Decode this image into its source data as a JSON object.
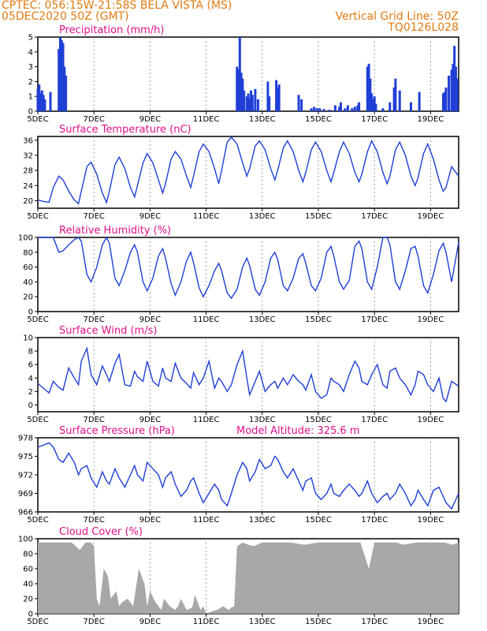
{
  "header": {
    "line1": "CPTEC:   056:15W-21:58S   BELA VISTA (MS)",
    "line2": "05DEC2020 50Z (GMT)",
    "grid_note": "Vertical Grid Line: 50Z",
    "code": "TQ0126L028"
  },
  "colors": {
    "title": "#e0108a",
    "header": "#e07a12",
    "series": "#1f3fd6",
    "cloud": "#a8a8a8"
  },
  "x_axis": {
    "days": [
      "5DEC",
      "7DEC",
      "9DEC",
      "11DEC",
      "13DEC",
      "15DEC",
      "17DEC",
      "19DEC"
    ],
    "day_values": [
      5,
      7,
      9,
      11,
      13,
      15,
      17,
      19
    ],
    "range": [
      5,
      20
    ]
  },
  "chart_data": [
    {
      "id": "precip",
      "type": "bar",
      "title": "Precipitation (mm/h)",
      "ylim": [
        0,
        5
      ],
      "yticks": [
        0,
        1,
        2,
        3,
        4,
        5
      ],
      "x": [
        5.0,
        5.05,
        5.1,
        5.15,
        5.2,
        5.25,
        5.45,
        5.75,
        5.8,
        5.85,
        5.9,
        5.95,
        6.0,
        12.1,
        12.15,
        12.2,
        12.25,
        12.3,
        12.35,
        12.45,
        12.5,
        12.55,
        12.6,
        12.65,
        12.75,
        12.85,
        13.2,
        13.25,
        13.5,
        13.55,
        13.6,
        14.3,
        14.4,
        14.75,
        14.85,
        14.95,
        15.05,
        15.2,
        15.4,
        15.6,
        15.75,
        15.8,
        15.95,
        16.05,
        16.2,
        16.3,
        16.4,
        16.45,
        16.75,
        16.8,
        16.85,
        16.9,
        16.95,
        17.0,
        17.05,
        17.3,
        17.55,
        17.7,
        17.75,
        17.9,
        18.3,
        18.6,
        19.45,
        19.5,
        19.55,
        19.65,
        19.75,
        19.8,
        19.85,
        19.9,
        19.95
      ],
      "values": [
        1.5,
        1.8,
        1.2,
        1.4,
        1.1,
        0.8,
        1.3,
        4.2,
        5.0,
        4.8,
        4.6,
        3.0,
        2.4,
        3.0,
        2.8,
        5.0,
        2.6,
        2.2,
        1.4,
        1.0,
        1.2,
        0.9,
        1.4,
        1.1,
        1.5,
        0.8,
        2.0,
        1.0,
        2.1,
        1.6,
        1.8,
        1.1,
        0.8,
        0.2,
        0.3,
        0.2,
        0.2,
        0.15,
        0.1,
        0.4,
        0.3,
        0.6,
        0.2,
        0.4,
        0.2,
        0.3,
        0.4,
        0.6,
        3.0,
        3.2,
        2.2,
        1.2,
        0.8,
        1.0,
        0.5,
        0.2,
        0.6,
        1.6,
        2.2,
        1.4,
        0.6,
        1.3,
        1.2,
        1.3,
        1.6,
        2.4,
        2.8,
        3.2,
        4.4,
        3.0,
        2.2
      ]
    },
    {
      "id": "temp",
      "type": "line",
      "title": "Surface Temperature (nC)",
      "ylim": [
        18,
        37
      ],
      "yticks": [
        20,
        24,
        28,
        32,
        36
      ],
      "x": [
        5.0,
        5.2,
        5.4,
        5.55,
        5.75,
        5.9,
        6.1,
        6.3,
        6.45,
        6.55,
        6.75,
        6.9,
        7.1,
        7.3,
        7.45,
        7.55,
        7.75,
        7.9,
        8.1,
        8.3,
        8.45,
        8.55,
        8.75,
        8.9,
        9.1,
        9.3,
        9.45,
        9.55,
        9.75,
        9.9,
        10.1,
        10.3,
        10.45,
        10.55,
        10.75,
        10.9,
        11.1,
        11.3,
        11.45,
        11.55,
        11.75,
        11.9,
        12.1,
        12.3,
        12.45,
        12.55,
        12.75,
        12.9,
        13.1,
        13.3,
        13.45,
        13.55,
        13.75,
        13.9,
        14.1,
        14.3,
        14.45,
        14.55,
        14.75,
        14.9,
        15.1,
        15.3,
        15.45,
        15.55,
        15.75,
        15.9,
        16.1,
        16.3,
        16.45,
        16.55,
        16.75,
        16.9,
        17.1,
        17.3,
        17.45,
        17.55,
        17.75,
        17.9,
        18.1,
        18.3,
        18.45,
        18.55,
        18.75,
        18.9,
        19.1,
        19.3,
        19.45,
        19.55,
        19.75,
        20.0
      ],
      "values": [
        20.2,
        19.8,
        19.6,
        23.5,
        26.5,
        25.5,
        22.5,
        20.2,
        19.2,
        22.5,
        29.0,
        30.2,
        27.0,
        22.0,
        19.5,
        22.5,
        29.5,
        31.5,
        28.5,
        23.5,
        21.0,
        24.0,
        30.0,
        32.5,
        30.0,
        25.5,
        22.0,
        24.5,
        31.0,
        33.0,
        31.0,
        26.5,
        23.5,
        26.5,
        33.0,
        35.0,
        33.0,
        28.5,
        24.5,
        28.0,
        35.5,
        36.8,
        35.0,
        30.0,
        26.5,
        28.5,
        34.5,
        35.8,
        33.5,
        28.5,
        25.5,
        28.0,
        34.0,
        35.8,
        33.0,
        28.0,
        25.0,
        27.5,
        33.5,
        35.5,
        33.0,
        28.0,
        25.0,
        27.5,
        33.0,
        35.5,
        32.5,
        27.5,
        25.0,
        27.0,
        33.0,
        35.8,
        33.0,
        27.5,
        24.5,
        26.5,
        33.5,
        35.5,
        32.0,
        26.5,
        24.0,
        26.0,
        32.5,
        35.0,
        31.0,
        25.5,
        22.5,
        23.5,
        29.0,
        26.5
      ]
    },
    {
      "id": "rh",
      "type": "line",
      "title": "Relative Humidity (%)",
      "ylim": [
        0,
        100
      ],
      "yticks": [
        0,
        20,
        40,
        60,
        80,
        100
      ],
      "x": [
        5.0,
        5.3,
        5.55,
        5.75,
        5.9,
        6.1,
        6.3,
        6.45,
        6.55,
        6.75,
        6.9,
        7.1,
        7.3,
        7.45,
        7.55,
        7.75,
        7.9,
        8.1,
        8.3,
        8.45,
        8.55,
        8.75,
        8.9,
        9.1,
        9.3,
        9.45,
        9.55,
        9.75,
        9.9,
        10.1,
        10.3,
        10.45,
        10.55,
        10.75,
        10.9,
        11.1,
        11.3,
        11.45,
        11.55,
        11.75,
        11.9,
        12.1,
        12.3,
        12.45,
        12.55,
        12.75,
        12.9,
        13.1,
        13.3,
        13.45,
        13.55,
        13.75,
        13.9,
        14.1,
        14.3,
        14.45,
        14.55,
        14.75,
        14.9,
        15.1,
        15.3,
        15.45,
        15.55,
        15.75,
        15.9,
        16.1,
        16.3,
        16.45,
        16.55,
        16.75,
        16.9,
        17.1,
        17.3,
        17.45,
        17.55,
        17.75,
        17.9,
        18.1,
        18.3,
        18.45,
        18.55,
        18.75,
        18.9,
        19.1,
        19.3,
        19.45,
        19.55,
        19.75,
        20.0
      ],
      "values": [
        100,
        100,
        100,
        80,
        82,
        90,
        97,
        100,
        95,
        50,
        40,
        60,
        90,
        100,
        92,
        45,
        35,
        55,
        80,
        90,
        80,
        40,
        28,
        45,
        75,
        85,
        72,
        38,
        22,
        40,
        68,
        80,
        66,
        32,
        20,
        35,
        55,
        65,
        55,
        25,
        18,
        30,
        60,
        72,
        62,
        30,
        22,
        40,
        72,
        80,
        70,
        35,
        28,
        45,
        72,
        78,
        65,
        35,
        28,
        45,
        80,
        88,
        75,
        40,
        30,
        42,
        88,
        95,
        85,
        40,
        30,
        60,
        100,
        100,
        90,
        40,
        30,
        55,
        85,
        88,
        75,
        35,
        25,
        50,
        82,
        92,
        80,
        40,
        93
      ]
    },
    {
      "id": "wind",
      "type": "line",
      "title": "Surface Wind (m/s)",
      "ylim": [
        -1,
        10
      ],
      "yticks": [
        0,
        2,
        4,
        6,
        8,
        10
      ],
      "x": [
        5.0,
        5.2,
        5.4,
        5.55,
        5.75,
        5.9,
        6.1,
        6.3,
        6.45,
        6.55,
        6.75,
        6.9,
        7.1,
        7.3,
        7.45,
        7.55,
        7.75,
        7.9,
        8.1,
        8.3,
        8.45,
        8.55,
        8.75,
        8.9,
        9.1,
        9.3,
        9.45,
        9.55,
        9.75,
        9.9,
        10.1,
        10.3,
        10.45,
        10.55,
        10.75,
        10.9,
        11.1,
        11.3,
        11.45,
        11.55,
        11.75,
        11.9,
        12.1,
        12.3,
        12.45,
        12.55,
        12.75,
        12.9,
        13.1,
        13.3,
        13.45,
        13.55,
        13.75,
        13.9,
        14.1,
        14.3,
        14.45,
        14.55,
        14.75,
        14.9,
        15.1,
        15.3,
        15.45,
        15.55,
        15.75,
        15.9,
        16.1,
        16.3,
        16.45,
        16.55,
        16.75,
        16.9,
        17.1,
        17.3,
        17.45,
        17.55,
        17.75,
        17.9,
        18.1,
        18.3,
        18.45,
        18.55,
        18.75,
        18.9,
        19.1,
        19.3,
        19.45,
        19.55,
        19.75,
        20.0
      ],
      "values": [
        3.2,
        2.5,
        1.8,
        3.5,
        2.6,
        2.2,
        5.5,
        4.0,
        3.0,
        6.5,
        8.4,
        4.5,
        3.0,
        5.8,
        4.5,
        3.5,
        6.2,
        7.5,
        3.0,
        2.8,
        5.0,
        4.2,
        3.5,
        6.5,
        3.5,
        2.8,
        5.5,
        4.0,
        3.5,
        6.2,
        4.0,
        3.2,
        2.5,
        4.8,
        3.0,
        4.0,
        6.5,
        2.5,
        4.0,
        3.5,
        2.0,
        3.0,
        6.0,
        8.0,
        4.0,
        1.5,
        3.5,
        5.0,
        2.0,
        3.0,
        3.5,
        2.5,
        4.0,
        3.0,
        4.5,
        3.5,
        3.0,
        2.2,
        4.5,
        2.0,
        1.0,
        1.5,
        4.0,
        3.5,
        3.0,
        2.0,
        4.5,
        6.5,
        5.5,
        3.5,
        3.0,
        4.5,
        6.0,
        3.0,
        2.5,
        5.0,
        5.5,
        4.0,
        3.0,
        1.5,
        3.0,
        5.0,
        4.5,
        3.0,
        2.0,
        4.0,
        1.0,
        0.5,
        3.5,
        2.8
      ]
    },
    {
      "id": "pressure",
      "type": "line",
      "title": "Surface Pressure (hPa)",
      "annotation": "Model Altitude: 325.6 m",
      "ylim": [
        966,
        978
      ],
      "yticks": [
        966,
        969,
        972,
        975,
        978
      ],
      "x": [
        5.0,
        5.2,
        5.4,
        5.55,
        5.75,
        5.9,
        6.1,
        6.3,
        6.45,
        6.55,
        6.75,
        6.9,
        7.1,
        7.3,
        7.45,
        7.55,
        7.75,
        7.9,
        8.1,
        8.3,
        8.45,
        8.55,
        8.75,
        8.9,
        9.1,
        9.3,
        9.45,
        9.55,
        9.75,
        9.9,
        10.1,
        10.3,
        10.45,
        10.55,
        10.75,
        10.9,
        11.1,
        11.3,
        11.45,
        11.55,
        11.75,
        11.9,
        12.1,
        12.3,
        12.45,
        12.55,
        12.75,
        12.9,
        13.1,
        13.3,
        13.45,
        13.55,
        13.75,
        13.9,
        14.1,
        14.3,
        14.45,
        14.55,
        14.75,
        14.9,
        15.1,
        15.3,
        15.45,
        15.55,
        15.75,
        15.9,
        16.1,
        16.3,
        16.45,
        16.55,
        16.75,
        16.9,
        17.1,
        17.3,
        17.45,
        17.55,
        17.75,
        17.9,
        18.1,
        18.3,
        18.45,
        18.55,
        18.75,
        18.9,
        19.1,
        19.3,
        19.45,
        19.55,
        19.75,
        20.0
      ],
      "values": [
        976.5,
        976.8,
        977.2,
        976.5,
        974.5,
        974.0,
        975.5,
        974.0,
        972.0,
        973.0,
        973.5,
        971.5,
        970.0,
        972.5,
        971.0,
        970.5,
        973.0,
        971.5,
        970.0,
        972.0,
        973.5,
        972.0,
        971.0,
        974.0,
        973.0,
        972.0,
        970.0,
        971.5,
        972.5,
        970.5,
        968.5,
        969.5,
        971.0,
        971.5,
        969.0,
        967.5,
        969.0,
        970.5,
        969.5,
        968.0,
        967.0,
        969.0,
        972.0,
        974.0,
        973.0,
        971.0,
        972.5,
        974.5,
        973.0,
        973.5,
        975.0,
        974.5,
        972.5,
        971.5,
        973.0,
        971.0,
        969.5,
        971.0,
        971.5,
        969.0,
        968.0,
        969.0,
        970.5,
        969.0,
        968.5,
        969.5,
        970.5,
        969.5,
        968.5,
        969.0,
        971.0,
        969.0,
        967.5,
        968.5,
        969.0,
        968.0,
        969.0,
        970.5,
        969.0,
        967.0,
        968.0,
        969.5,
        968.0,
        967.0,
        969.5,
        970.0,
        968.5,
        967.5,
        966.5,
        969.0
      ]
    },
    {
      "id": "cloud",
      "type": "area",
      "title": "Cloud Cover (%)",
      "ylim": [
        0,
        100
      ],
      "yticks": [
        0,
        20,
        40,
        60,
        80,
        100
      ],
      "x": [
        5.0,
        5.1,
        5.3,
        5.5,
        5.6,
        5.8,
        6.0,
        6.1,
        6.2,
        6.5,
        6.7,
        6.9,
        7.0,
        7.1,
        7.2,
        7.35,
        7.5,
        7.6,
        7.8,
        7.9,
        8.0,
        8.2,
        8.4,
        8.6,
        8.8,
        8.9,
        9.0,
        9.2,
        9.4,
        9.5,
        9.7,
        9.9,
        10.0,
        10.1,
        10.3,
        10.5,
        10.6,
        10.8,
        10.9,
        11.0,
        11.2,
        11.4,
        11.6,
        11.8,
        11.9,
        12.0,
        12.1,
        12.3,
        12.5,
        12.7,
        13.0,
        13.5,
        14.0,
        14.5,
        15.0,
        15.5,
        16.0,
        16.5,
        16.8,
        17.0,
        17.5,
        17.8,
        18.0,
        18.5,
        19.0,
        19.5,
        19.8,
        20.0
      ],
      "values": [
        95,
        95,
        95,
        95,
        95,
        95,
        95,
        95,
        95,
        85,
        95,
        95,
        90,
        20,
        10,
        60,
        50,
        20,
        30,
        10,
        15,
        20,
        10,
        60,
        40,
        10,
        30,
        15,
        5,
        20,
        10,
        5,
        10,
        20,
        5,
        8,
        25,
        5,
        10,
        0,
        3,
        5,
        10,
        5,
        8,
        10,
        90,
        95,
        92,
        90,
        95,
        95,
        95,
        92,
        95,
        95,
        95,
        95,
        60,
        95,
        95,
        95,
        92,
        95,
        95,
        95,
        92,
        95
      ]
    }
  ]
}
